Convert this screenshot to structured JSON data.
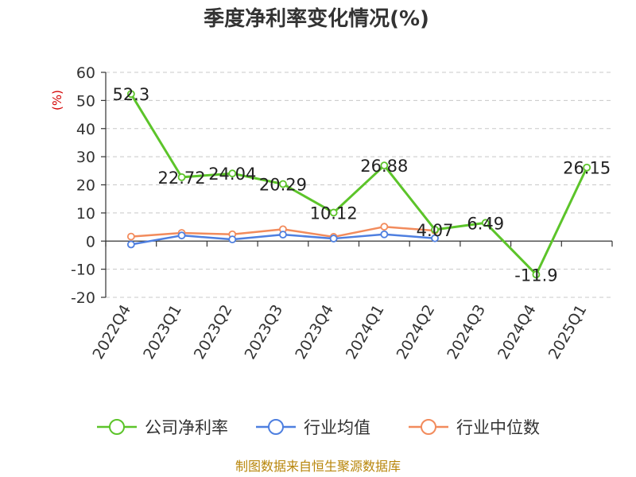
{
  "chart_data": {
    "type": "line",
    "title": "季度净利率变化情况(%)",
    "ylabel": "(%)",
    "categories": [
      "2022Q4",
      "2023Q1",
      "2023Q2",
      "2023Q3",
      "2023Q4",
      "2024Q1",
      "2024Q2",
      "2024Q3",
      "2024Q4",
      "2025Q1"
    ],
    "ylim": [
      -20,
      60
    ],
    "yticks": [
      -20,
      -10,
      0,
      10,
      20,
      30,
      40,
      50,
      60
    ],
    "ytick_labels": [
      "-20",
      "-10",
      "0",
      "10",
      "20",
      "30",
      "40",
      "50",
      "60"
    ],
    "grid": true,
    "legend_position": "bottom",
    "series": [
      {
        "name": "公司净利率",
        "color": "#5cc42a",
        "values": [
          52.3,
          22.72,
          24.04,
          20.29,
          10.12,
          26.88,
          4.07,
          6.49,
          -11.9,
          26.15
        ],
        "labels": [
          "52.3",
          "22.72",
          "24.04",
          "20.29",
          "10.12",
          "26.88",
          "4.07",
          "6.49",
          "-11.9",
          "26.15"
        ]
      },
      {
        "name": "行业均值",
        "color": "#4e7fe0",
        "values": [
          -1.2,
          2.0,
          0.6,
          2.3,
          0.9,
          2.4,
          1.0,
          null,
          null,
          null
        ]
      },
      {
        "name": "行业中位数",
        "color": "#f28b5c",
        "values": [
          1.6,
          2.9,
          2.4,
          4.2,
          1.5,
          5.1,
          3.7,
          null,
          null,
          null
        ]
      }
    ]
  },
  "source": "制图数据来自恒生聚源数据库"
}
